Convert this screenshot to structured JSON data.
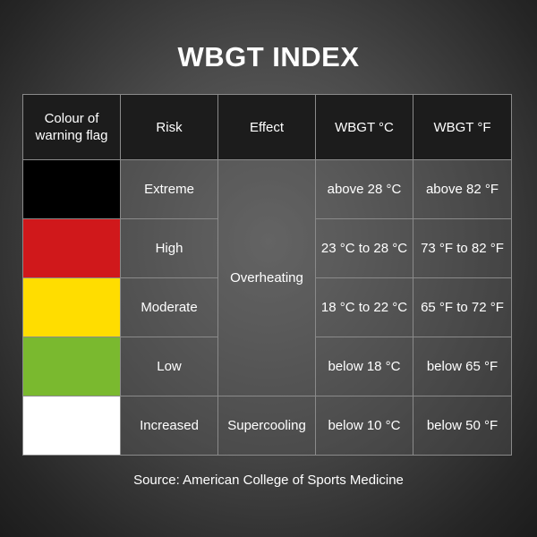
{
  "title": "WBGT INDEX",
  "table": {
    "headers": {
      "flag_colour": "Colour of warning flag",
      "risk": "Risk",
      "effect": "Effect",
      "wbgt_c": "WBGT °C",
      "wbgt_f": "WBGT °F"
    },
    "effects": {
      "overheating": "Overheating",
      "supercooling": "Supercooling"
    },
    "rows": [
      {
        "flag_color": "#000000",
        "risk": "Extreme",
        "celsius": "above 28 °C",
        "fahrenheit": "above 82 °F"
      },
      {
        "flag_color": "#d0181b",
        "risk": "High",
        "celsius": "23 °C to 28 °C",
        "fahrenheit": "73 °F to 82 °F"
      },
      {
        "flag_color": "#ffdd00",
        "risk": "Moderate",
        "celsius": "18 °C to 22 °C",
        "fahrenheit": "65 °F to 72 °F"
      },
      {
        "flag_color": "#7ab92f",
        "risk": "Low",
        "celsius": "below 18 °C",
        "fahrenheit": "below 65 °F"
      },
      {
        "flag_color": "#ffffff",
        "risk": "Increased",
        "celsius": "below 10 °C",
        "fahrenheit": "below 50 °F"
      }
    ]
  },
  "source": "Source: American College of Sports Medicine"
}
